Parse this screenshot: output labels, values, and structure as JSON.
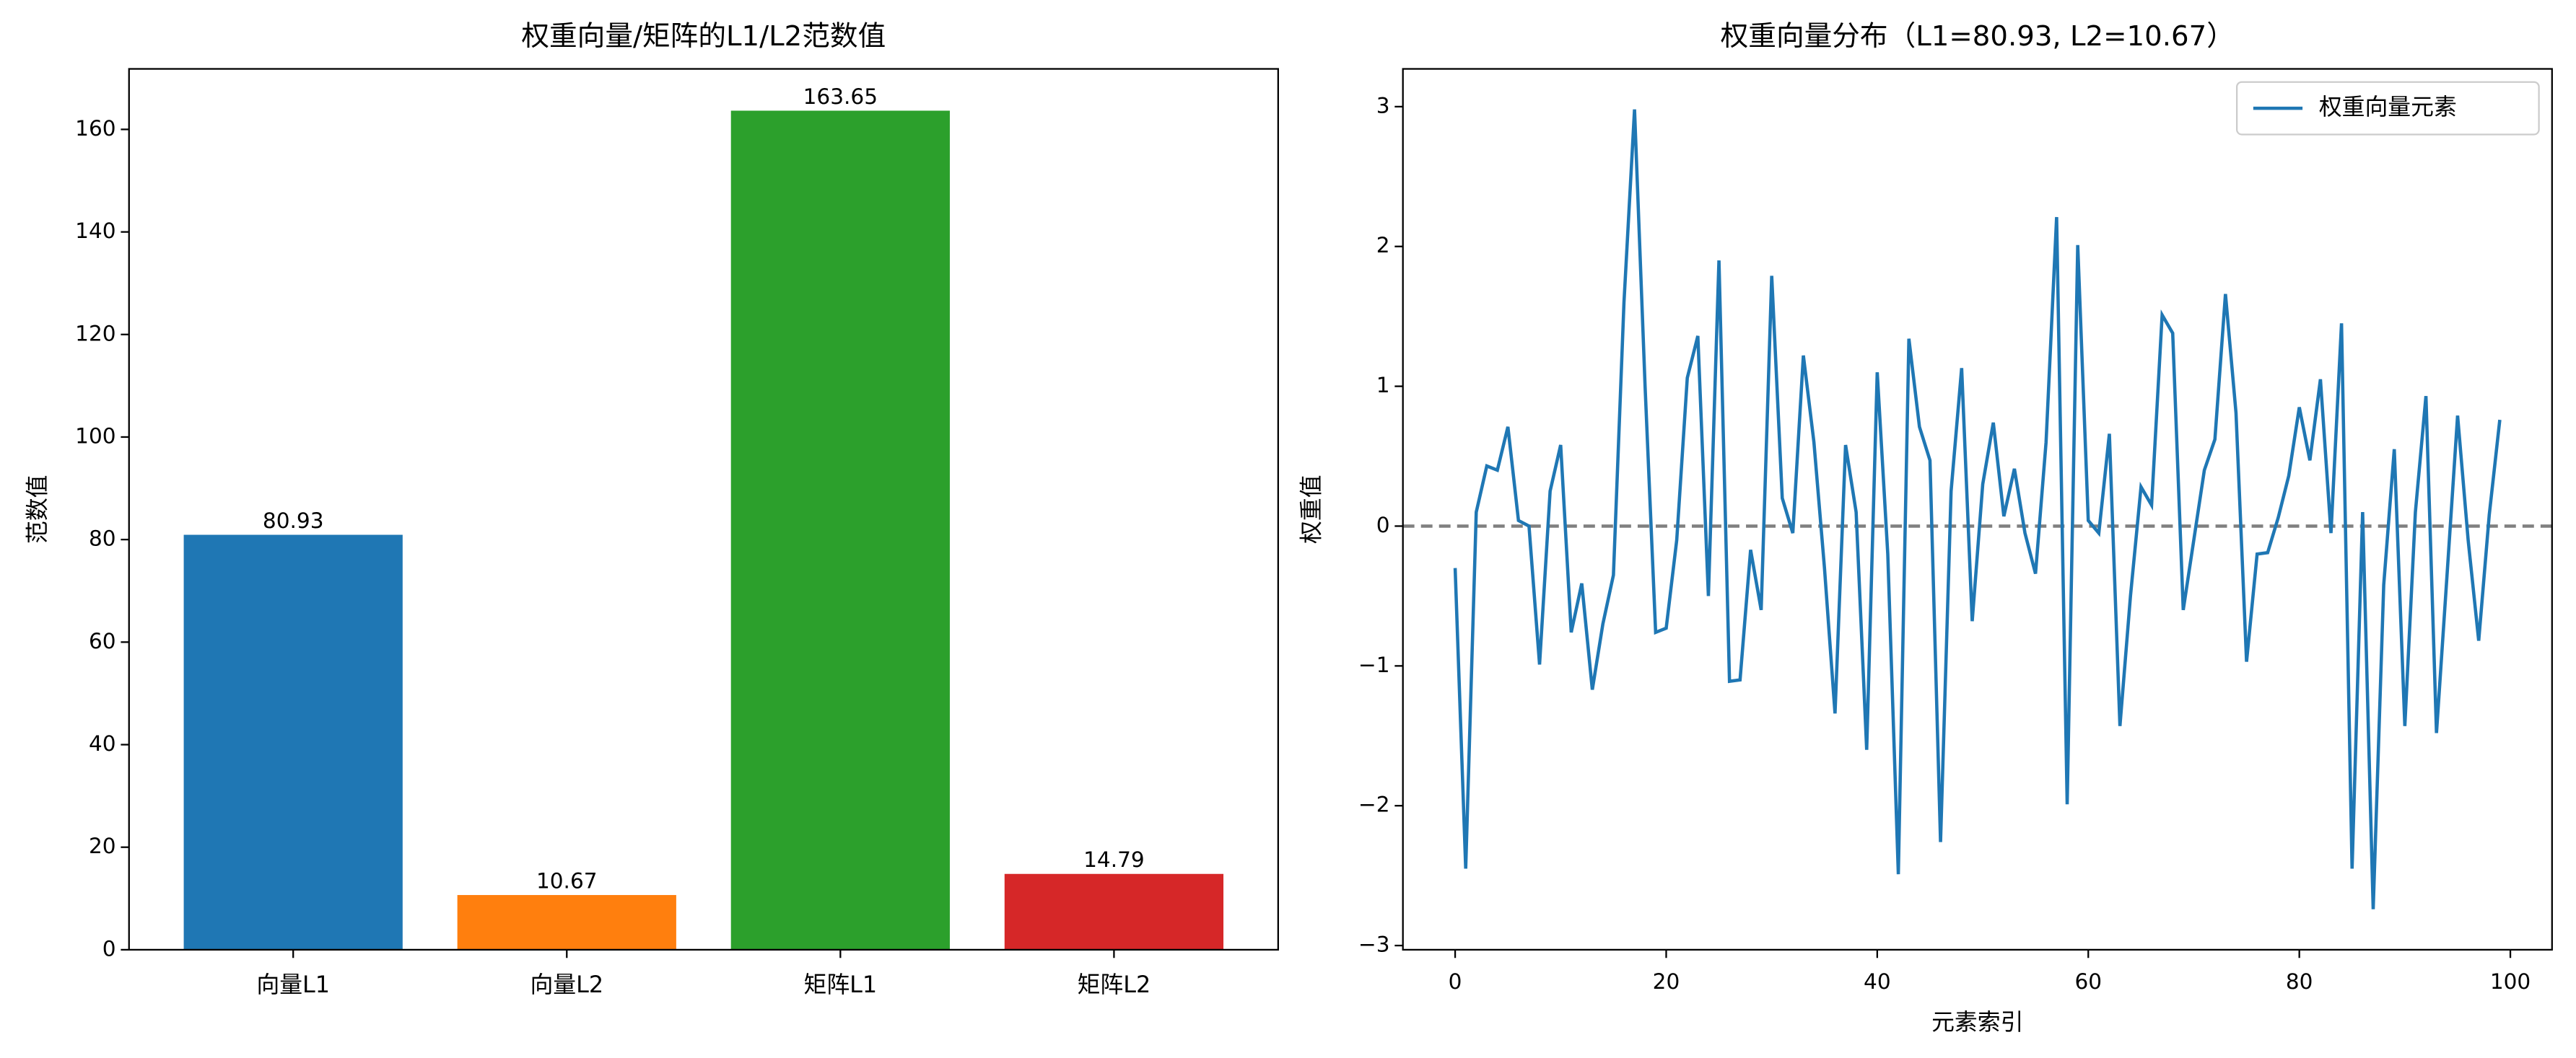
{
  "chart_data": [
    {
      "type": "bar",
      "title": "权重向量/矩阵的L1/L2范数值",
      "ylabel": "范数值",
      "categories": [
        "向量L1",
        "向量L2",
        "矩阵L1",
        "矩阵L2"
      ],
      "values": [
        80.93,
        10.67,
        163.65,
        14.79
      ],
      "colors": [
        "#1f77b4",
        "#ff7f0e",
        "#2ca02c",
        "#d62728"
      ],
      "ylim": [
        0,
        171.8
      ],
      "yticks": [
        0,
        20,
        40,
        60,
        80,
        100,
        120,
        140,
        160
      ]
    },
    {
      "type": "line",
      "title": "权重向量分布（L1=80.93, L2=10.67）",
      "xlabel": "元素索引",
      "ylabel": "权重值",
      "x": [
        0,
        1,
        2,
        3,
        4,
        5,
        6,
        7,
        8,
        9,
        10,
        11,
        12,
        13,
        14,
        15,
        16,
        17,
        18,
        19,
        20,
        21,
        22,
        23,
        24,
        25,
        26,
        27,
        28,
        29,
        30,
        31,
        32,
        33,
        34,
        35,
        36,
        37,
        38,
        39,
        40,
        41,
        42,
        43,
        44,
        45,
        46,
        47,
        48,
        49,
        50,
        51,
        52,
        53,
        54,
        55,
        56,
        57,
        58,
        59,
        60,
        61,
        62,
        63,
        64,
        65,
        66,
        67,
        68,
        69,
        70,
        71,
        72,
        73,
        74,
        75,
        76,
        77,
        78,
        79,
        80,
        81,
        82,
        83,
        84,
        85,
        86,
        87,
        88,
        89,
        90,
        91,
        92,
        93,
        94,
        95,
        96,
        97,
        98,
        99
      ],
      "series": [
        {
          "name": "权重向量元素",
          "color": "#1f77b4",
          "values": [
            -0.3,
            -2.45,
            0.1,
            0.43,
            0.4,
            0.71,
            0.04,
            0.0,
            -0.99,
            0.25,
            0.58,
            -0.76,
            -0.41,
            -1.17,
            -0.7,
            -0.35,
            1.6,
            2.98,
            1.0,
            -0.76,
            -0.73,
            -0.1,
            1.06,
            1.36,
            -0.5,
            1.9,
            -1.11,
            -1.1,
            -0.17,
            -0.6,
            1.79,
            0.2,
            -0.05,
            1.22,
            0.6,
            -0.3,
            -1.34,
            0.58,
            0.1,
            -1.6,
            1.1,
            -0.2,
            -2.49,
            1.34,
            0.71,
            0.47,
            -2.26,
            0.25,
            1.13,
            -0.68,
            0.3,
            0.74,
            0.07,
            0.41,
            -0.05,
            -0.34,
            0.6,
            2.21,
            -1.99,
            2.01,
            0.04,
            -0.05,
            0.66,
            -1.43,
            -0.5,
            0.28,
            0.15,
            1.51,
            1.38,
            -0.6,
            -0.1,
            0.4,
            0.62,
            1.66,
            0.81,
            -0.97,
            -0.2,
            -0.19,
            0.06,
            0.36,
            0.85,
            0.47,
            1.05,
            -0.05,
            1.45,
            -2.45,
            0.1,
            -2.74,
            -0.42,
            0.55,
            -1.43,
            0.1,
            0.93,
            -1.48,
            -0.35,
            0.79,
            -0.1,
            -0.82,
            0.08,
            0.76
          ]
        }
      ],
      "xlim": [
        -4.95,
        103.95
      ],
      "xticks": [
        0,
        20,
        40,
        60,
        80,
        100
      ],
      "ylim": [
        -3.03,
        3.27
      ],
      "yticks": [
        {
          "value": -3,
          "label": "−3"
        },
        {
          "value": -2,
          "label": "−2"
        },
        {
          "value": -1,
          "label": "−1"
        },
        0,
        1,
        2,
        3
      ],
      "hline": {
        "y": 0,
        "color": "#808080",
        "style": "dashed"
      },
      "legend": "upper right"
    }
  ]
}
